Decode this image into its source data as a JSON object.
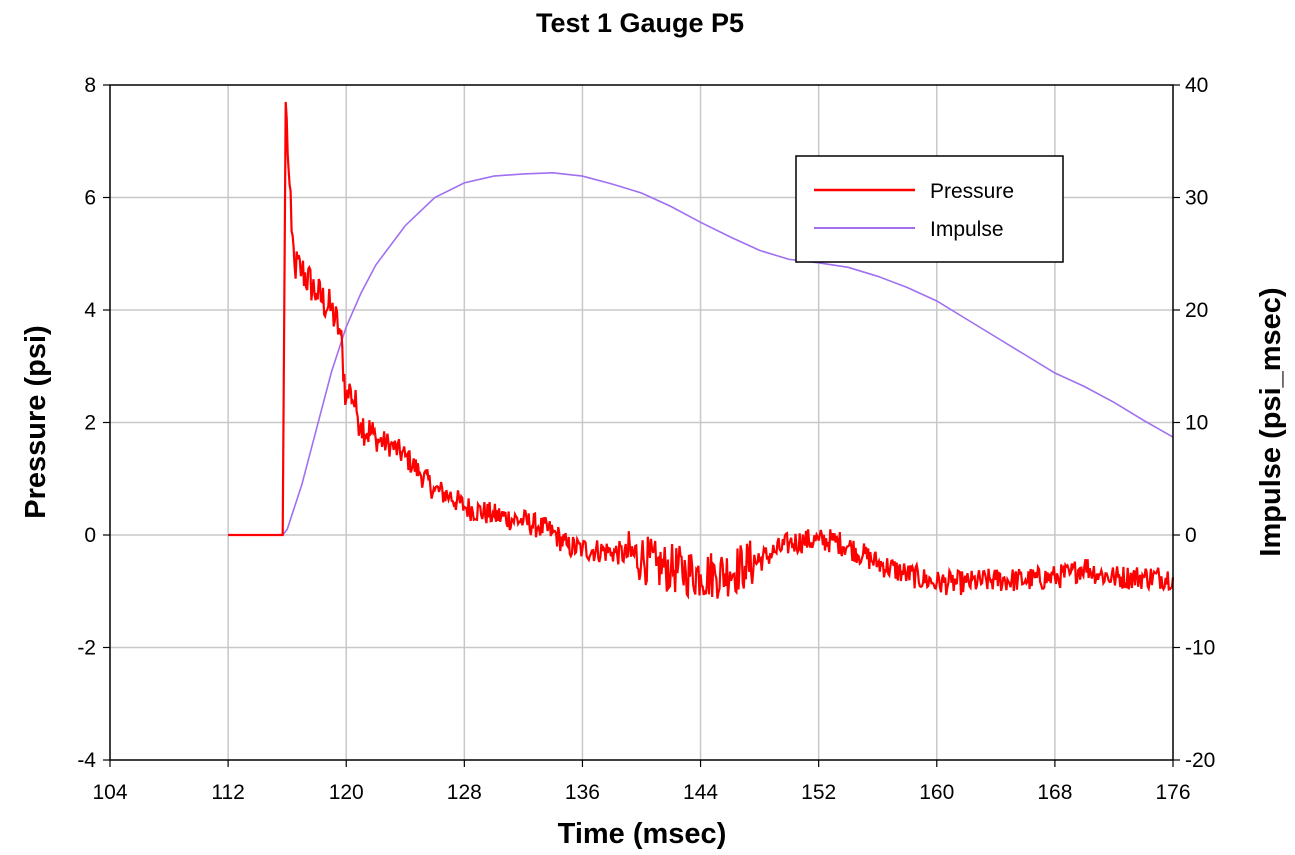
{
  "chart_data": {
    "type": "line",
    "title": "Test 1 Gauge P5",
    "xlabel": "Time (msec)",
    "ylabel": "Pressure (psi)",
    "y2label": "Impulse (psi_msec)",
    "xlim": [
      104,
      176
    ],
    "ylim": [
      -4,
      8
    ],
    "y2lim": [
      -20,
      40
    ],
    "x_ticks": [
      "104",
      "112",
      "120",
      "128",
      "136",
      "144",
      "152",
      "160",
      "168",
      "176"
    ],
    "y_ticks": [
      "-4",
      "-2",
      "0",
      "2",
      "4",
      "6",
      "8"
    ],
    "y2_ticks": [
      "-20",
      "-10",
      "0",
      "10",
      "20",
      "30",
      "40"
    ],
    "grid": true,
    "legend_position": "top-right",
    "colors": {
      "pressure": "#ff0000",
      "impulse": "#a070f0"
    },
    "series": [
      {
        "name": "Pressure",
        "axis": "left",
        "x": [
          112,
          114,
          115.7,
          115.9,
          116.1,
          116.3,
          116.5,
          117,
          118,
          119,
          119.6,
          120,
          120.3,
          120.7,
          121,
          122,
          123,
          124,
          125,
          126,
          127,
          128,
          130,
          132,
          133,
          134,
          135,
          136,
          138,
          140,
          141,
          142,
          143,
          144,
          145,
          146,
          147,
          148,
          149,
          150,
          151,
          152,
          153,
          154,
          155,
          156,
          158,
          160,
          161,
          162,
          164,
          166,
          168,
          169,
          170,
          171,
          172,
          174,
          176
        ],
        "y": [
          0,
          0,
          0,
          7.7,
          6.5,
          5.4,
          4.8,
          4.7,
          4.3,
          4.0,
          3.6,
          2.4,
          2.6,
          2.2,
          2.0,
          1.7,
          1.6,
          1.4,
          1.1,
          0.8,
          0.7,
          0.5,
          0.35,
          0.25,
          0.15,
          0.05,
          -0.2,
          -0.25,
          -0.3,
          -0.4,
          -0.55,
          -0.6,
          -0.65,
          -0.7,
          -0.7,
          -0.65,
          -0.55,
          -0.45,
          -0.3,
          -0.15,
          -0.1,
          -0.1,
          -0.1,
          -0.2,
          -0.35,
          -0.5,
          -0.7,
          -0.85,
          -0.85,
          -0.85,
          -0.8,
          -0.8,
          -0.75,
          -0.7,
          -0.55,
          -0.7,
          -0.75,
          -0.75,
          -0.75
        ]
      },
      {
        "name": "Impulse",
        "axis": "right",
        "x": [
          112,
          114,
          115.7,
          116,
          117,
          118,
          119,
          120,
          121,
          122,
          124,
          126,
          128,
          130,
          132,
          134,
          136,
          138,
          140,
          142,
          144,
          146,
          148,
          150,
          152,
          154,
          156,
          158,
          160,
          162,
          164,
          166,
          168,
          170,
          172,
          174,
          176
        ],
        "y": [
          0,
          0,
          0,
          0.5,
          4.5,
          9.5,
          14.5,
          18.5,
          21.5,
          24.0,
          27.5,
          30.0,
          31.3,
          31.9,
          32.1,
          32.2,
          31.9,
          31.2,
          30.4,
          29.2,
          27.8,
          26.5,
          25.3,
          24.5,
          24.2,
          23.8,
          23.0,
          22.0,
          20.8,
          19.2,
          17.6,
          16.0,
          14.4,
          13.2,
          11.8,
          10.2,
          8.7
        ]
      }
    ]
  }
}
